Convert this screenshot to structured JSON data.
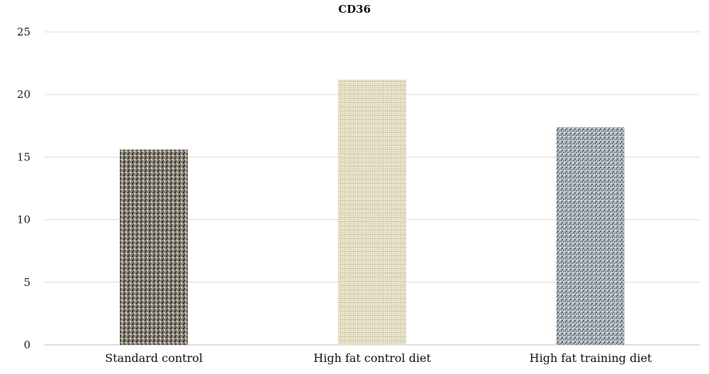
{
  "chart_data": {
    "type": "bar",
    "title": "CD36",
    "xlabel": "",
    "ylabel": "",
    "categories": [
      "Standard control",
      "High fat control diet",
      "High fat training diet"
    ],
    "values": [
      15.6,
      21.2,
      17.4
    ],
    "ylim": [
      0,
      25
    ],
    "yticks": [
      0,
      5,
      10,
      15,
      20,
      25
    ],
    "grid": true,
    "legend": "none",
    "bar_colors": [
      "#8a8478",
      "#e6dfc6",
      "#9aa4ac"
    ]
  }
}
